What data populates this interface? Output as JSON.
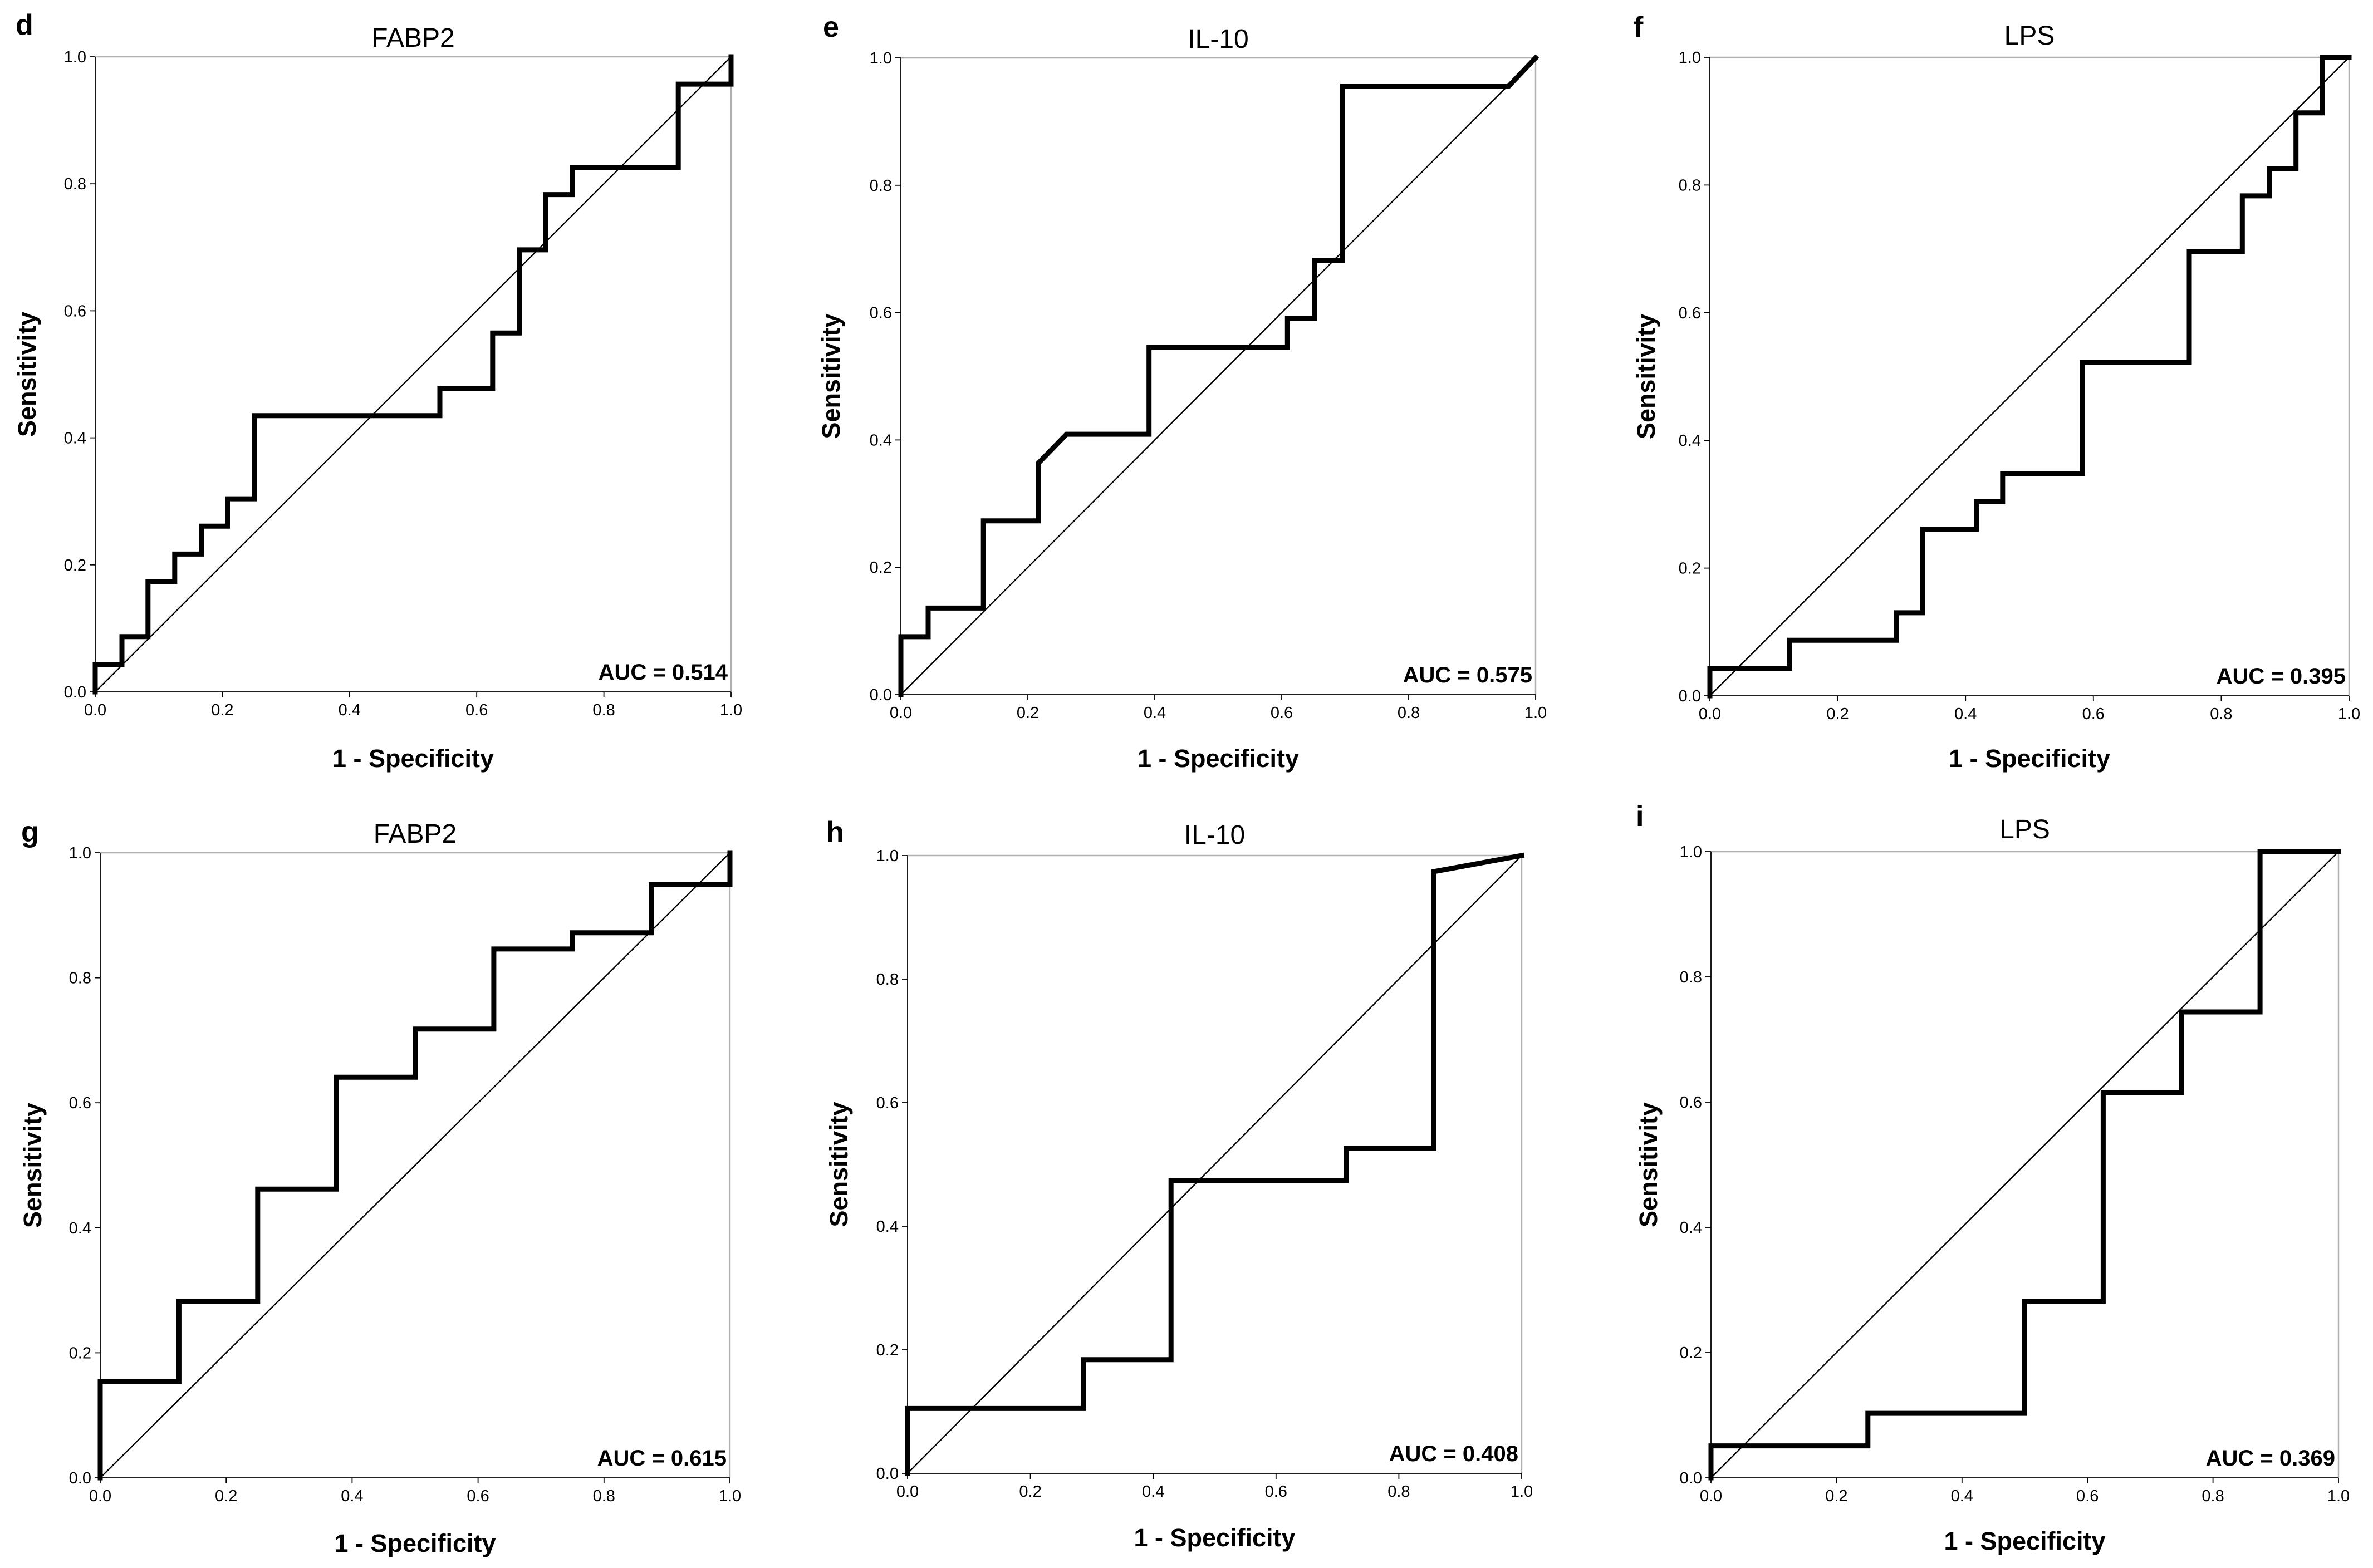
{
  "chart_data": [
    {
      "panel": "d",
      "type": "line",
      "title": "FABP2",
      "xlabel": "1 - Specificity",
      "ylabel": "Sensitivity",
      "xlim": [
        0,
        1
      ],
      "ylim": [
        0,
        1
      ],
      "xticks": [
        "0.0",
        "0.2",
        "0.4",
        "0.6",
        "0.8",
        "1.0"
      ],
      "yticks": [
        "0.0",
        "0.2",
        "0.4",
        "0.6",
        "0.8",
        "1.0"
      ],
      "annotation": "AUC = 0.514",
      "series": [
        {
          "x": [
            0,
            0,
            0.042,
            0.042,
            0.083,
            0.083,
            0.125,
            0.125,
            0.167,
            0.167,
            0.208,
            0.208,
            0.25,
            0.25,
            0.542,
            0.542,
            0.625,
            0.625,
            0.667,
            0.667,
            0.708,
            0.708,
            0.75,
            0.75,
            0.917,
            0.917,
            1.0,
            1.0
          ],
          "y": [
            0,
            0.043,
            0.043,
            0.087,
            0.087,
            0.174,
            0.174,
            0.217,
            0.217,
            0.261,
            0.261,
            0.304,
            0.304,
            0.435,
            0.435,
            0.478,
            0.478,
            0.565,
            0.565,
            0.696,
            0.696,
            0.783,
            0.783,
            0.826,
            0.826,
            0.957,
            0.957,
            1.0
          ]
        },
        {
          "x": [
            0,
            1
          ],
          "y": [
            0,
            1
          ]
        }
      ]
    },
    {
      "panel": "e",
      "type": "line",
      "title": "IL-10",
      "xlabel": "1 - Specificity",
      "ylabel": "Sensitivity",
      "xlim": [
        0,
        1
      ],
      "ylim": [
        0,
        1
      ],
      "xticks": [
        "0.0",
        "0.2",
        "0.4",
        "0.6",
        "0.8",
        "1.0"
      ],
      "yticks": [
        "0.0",
        "0.2",
        "0.4",
        "0.6",
        "0.8",
        "1.0"
      ],
      "annotation": "AUC = 0.575",
      "series": [
        {
          "x": [
            0,
            0,
            0.043,
            0.043,
            0.13,
            0.13,
            0.217,
            0.217,
            0.261,
            0.391,
            0.391,
            0.609,
            0.609,
            0.652,
            0.652,
            0.696,
            0.696,
            0.957,
            1.0
          ],
          "y": [
            0,
            0.091,
            0.091,
            0.136,
            0.136,
            0.273,
            0.273,
            0.364,
            0.409,
            0.409,
            0.545,
            0.545,
            0.591,
            0.591,
            0.682,
            0.682,
            0.955,
            0.955,
            1.0
          ]
        },
        {
          "x": [
            0,
            1
          ],
          "y": [
            0,
            1
          ]
        }
      ]
    },
    {
      "panel": "f",
      "type": "line",
      "title": "LPS",
      "xlabel": "1 - Specificity",
      "ylabel": "Sensitivity",
      "xlim": [
        0,
        1
      ],
      "ylim": [
        0,
        1
      ],
      "xticks": [
        "0.0",
        "0.2",
        "0.4",
        "0.6",
        "0.8",
        "1.0"
      ],
      "yticks": [
        "0.0",
        "0.2",
        "0.4",
        "0.6",
        "0.8",
        "1.0"
      ],
      "annotation": "AUC = 0.395",
      "series": [
        {
          "x": [
            0,
            0,
            0.125,
            0.125,
            0.292,
            0.292,
            0.333,
            0.333,
            0.417,
            0.417,
            0.458,
            0.458,
            0.583,
            0.583,
            0.75,
            0.75,
            0.833,
            0.833,
            0.875,
            0.875,
            0.917,
            0.917,
            0.958,
            0.958,
            1.0
          ],
          "y": [
            0,
            0.043,
            0.043,
            0.087,
            0.087,
            0.13,
            0.13,
            0.261,
            0.261,
            0.304,
            0.304,
            0.348,
            0.348,
            0.522,
            0.522,
            0.696,
            0.696,
            0.783,
            0.783,
            0.826,
            0.826,
            0.913,
            0.913,
            1.0,
            1.0
          ]
        },
        {
          "x": [
            0,
            1
          ],
          "y": [
            0,
            1
          ]
        }
      ]
    },
    {
      "panel": "g",
      "type": "line",
      "title": "FABP2",
      "xlabel": "1 - Specificity",
      "ylabel": "Sensitivity",
      "xlim": [
        0,
        1
      ],
      "ylim": [
        0,
        1
      ],
      "xticks": [
        "0.0",
        "0.2",
        "0.4",
        "0.6",
        "0.8",
        "1.0"
      ],
      "yticks": [
        "0.0",
        "0.2",
        "0.4",
        "0.6",
        "0.8",
        "1.0"
      ],
      "annotation": "AUC = 0.615",
      "series": [
        {
          "x": [
            0,
            0,
            0.125,
            0.125,
            0.25,
            0.25,
            0.375,
            0.375,
            0.5,
            0.5,
            0.625,
            0.625,
            0.75,
            0.75,
            0.875,
            0.875,
            1.0,
            1.0
          ],
          "y": [
            0,
            0.154,
            0.154,
            0.282,
            0.282,
            0.462,
            0.462,
            0.641,
            0.641,
            0.718,
            0.718,
            0.846,
            0.846,
            0.872,
            0.872,
            0.949,
            0.949,
            1.0
          ]
        },
        {
          "x": [
            0,
            1
          ],
          "y": [
            0,
            1
          ]
        }
      ]
    },
    {
      "panel": "h",
      "type": "line",
      "title": "IL-10",
      "xlabel": "1 - Specificity",
      "ylabel": "Sensitivity",
      "xlim": [
        0,
        1
      ],
      "ylim": [
        0,
        1
      ],
      "xticks": [
        "0.0",
        "0.2",
        "0.4",
        "0.6",
        "0.8",
        "1.0"
      ],
      "yticks": [
        "0.0",
        "0.2",
        "0.4",
        "0.6",
        "0.8",
        "1.0"
      ],
      "annotation": "AUC = 0.408",
      "series": [
        {
          "x": [
            0,
            0,
            0.286,
            0.286,
            0.429,
            0.429,
            0.714,
            0.714,
            0.857,
            0.857,
            1.0
          ],
          "y": [
            0,
            0.105,
            0.105,
            0.184,
            0.184,
            0.474,
            0.474,
            0.526,
            0.526,
            0.974,
            1.0
          ]
        },
        {
          "x": [
            0,
            1
          ],
          "y": [
            0,
            1
          ]
        }
      ]
    },
    {
      "panel": "i",
      "type": "line",
      "title": "LPS",
      "xlabel": "1 - Specificity",
      "ylabel": "Sensitivity",
      "xlim": [
        0,
        1
      ],
      "ylim": [
        0,
        1
      ],
      "xticks": [
        "0.0",
        "0.2",
        "0.4",
        "0.6",
        "0.8",
        "1.0"
      ],
      "yticks": [
        "0.0",
        "0.2",
        "0.4",
        "0.6",
        "0.8",
        "1.0"
      ],
      "annotation": "AUC = 0.369",
      "series": [
        {
          "x": [
            0,
            0,
            0.25,
            0.25,
            0.5,
            0.5,
            0.625,
            0.625,
            0.75,
            0.75,
            0.875,
            0.875,
            1.0
          ],
          "y": [
            0,
            0.051,
            0.051,
            0.103,
            0.103,
            0.282,
            0.282,
            0.615,
            0.615,
            0.744,
            0.744,
            1.0,
            1.0
          ]
        },
        {
          "x": [
            0,
            1
          ],
          "y": [
            0,
            1
          ]
        }
      ]
    }
  ]
}
